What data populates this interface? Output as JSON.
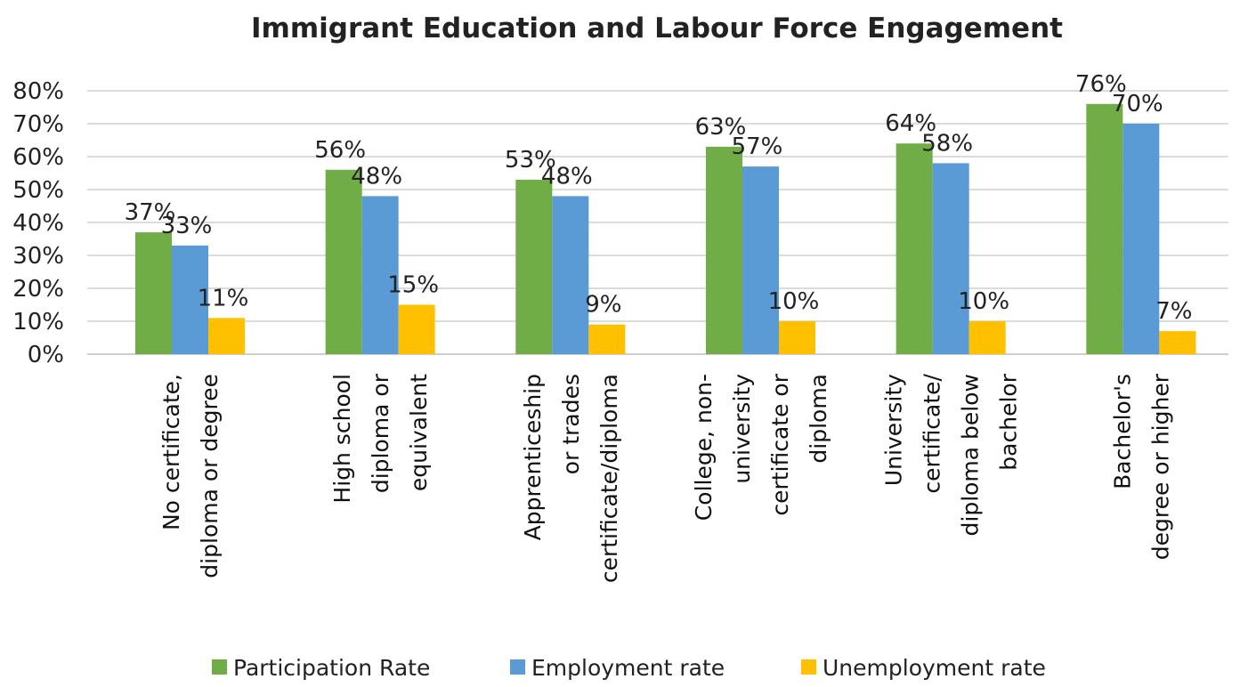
{
  "chart_data": {
    "type": "bar",
    "title": "Immigrant Education and Labour Force Engagement",
    "xlabel": "",
    "ylabel": "",
    "ylim": [
      0,
      80
    ],
    "yticks": [
      "0%",
      "10%",
      "20%",
      "30%",
      "40%",
      "50%",
      "60%",
      "70%",
      "80%"
    ],
    "grid": true,
    "legend_position": "bottom",
    "categories": [
      [
        "No certificate,",
        "diploma or degree"
      ],
      [
        "High school",
        "diploma or",
        "equivalent"
      ],
      [
        "Apprenticeship",
        "or trades",
        "certificate/diploma"
      ],
      [
        "College, non-",
        "university",
        "certificate or",
        "diploma"
      ],
      [
        "University",
        "certificate/",
        "diploma below",
        "bachelor"
      ],
      [
        "Bachelor's",
        "degree or higher"
      ]
    ],
    "series": [
      {
        "name": "Participation Rate",
        "color": "#70ad47",
        "values": [
          37,
          56,
          53,
          63,
          64,
          76
        ]
      },
      {
        "name": "Employment rate",
        "color": "#5b9bd5",
        "values": [
          33,
          48,
          48,
          57,
          58,
          70
        ]
      },
      {
        "name": "Unemployment rate",
        "color": "#ffc000",
        "values": [
          11,
          15,
          9,
          10,
          10,
          7
        ]
      }
    ],
    "value_suffix": "%"
  }
}
